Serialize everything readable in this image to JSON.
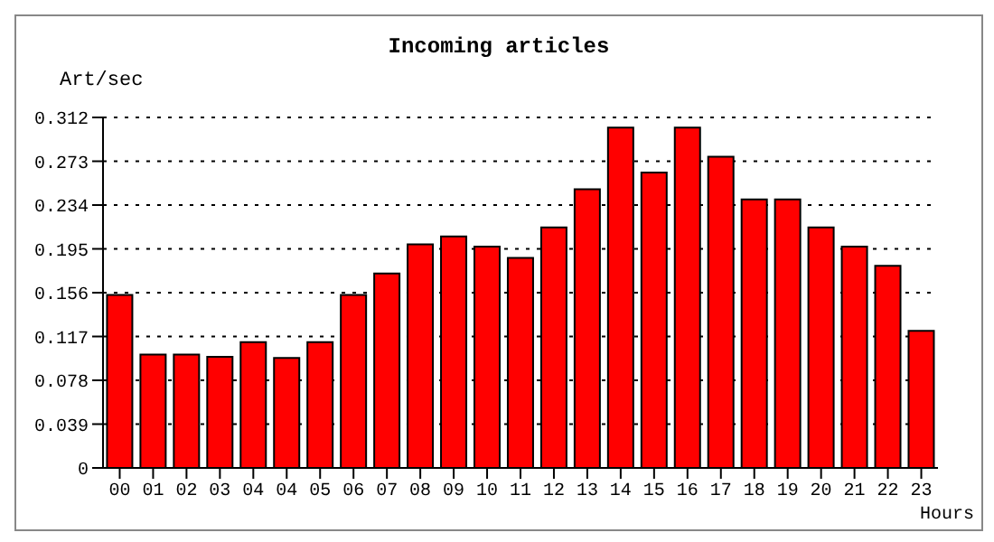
{
  "chart_data": {
    "type": "bar",
    "title": "Incoming articles",
    "ylabel": "Art/sec",
    "xlabel": "Hours",
    "categories": [
      "00",
      "01",
      "02",
      "03",
      "04",
      "04",
      "05",
      "06",
      "07",
      "08",
      "09",
      "10",
      "11",
      "12",
      "13",
      "14",
      "15",
      "16",
      "17",
      "18",
      "19",
      "20",
      "21",
      "22",
      "23"
    ],
    "values": [
      0.154,
      0.101,
      0.101,
      0.099,
      0.112,
      0.098,
      0.112,
      0.154,
      0.173,
      0.199,
      0.206,
      0.197,
      0.187,
      0.214,
      0.248,
      0.303,
      0.263,
      0.303,
      0.277,
      0.239,
      0.239,
      0.214,
      0.197,
      0.18,
      0.122
    ],
    "color": "#ff0000",
    "ylim": [
      0,
      0.312
    ],
    "yticks": [
      0,
      0.039,
      0.078,
      0.117,
      0.156,
      0.195,
      0.234,
      0.273,
      0.312
    ],
    "grid": "y",
    "legend": false
  }
}
